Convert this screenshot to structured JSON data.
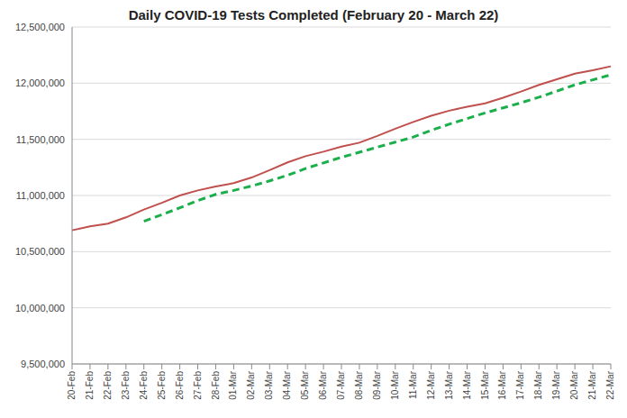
{
  "chart_data": {
    "type": "line",
    "title": "Daily COVID-19 Tests Completed (February 20 - March 22)",
    "categories": [
      "20-Feb",
      "21-Feb",
      "22-Feb",
      "23-Feb",
      "24-Feb",
      "25-Feb",
      "26-Feb",
      "27-Feb",
      "28-Feb",
      "01-Mar",
      "02-Mar",
      "03-Mar",
      "04-Mar",
      "05-Mar",
      "06-Mar",
      "07-Mar",
      "08-Mar",
      "09-Mar",
      "10-Mar",
      "11-Mar",
      "12-Mar",
      "13-Mar",
      "14-Mar",
      "15-Mar",
      "16-Mar",
      "17-Mar",
      "18-Mar",
      "19-Mar",
      "20-Mar",
      "21-Mar",
      "22-Mar"
    ],
    "series": [
      {
        "color": "#c0504d",
        "line_style": "solid",
        "values": [
          10690000,
          10725000,
          10750000,
          10805000,
          10875000,
          10935000,
          11000000,
          11045000,
          11080000,
          11110000,
          11160000,
          11225000,
          11295000,
          11350000,
          11390000,
          11435000,
          11470000,
          11530000,
          11595000,
          11655000,
          11710000,
          11755000,
          11790000,
          11820000,
          11870000,
          11925000,
          11985000,
          12035000,
          12085000,
          12115000,
          12150000
        ]
      },
      {
        "color": "#1aaf4b",
        "line_style": "dashed",
        "values": [
          null,
          null,
          null,
          null,
          10770000,
          10830000,
          10890000,
          10955000,
          11010000,
          11045000,
          11085000,
          11130000,
          11180000,
          11240000,
          11290000,
          11340000,
          11385000,
          11430000,
          11475000,
          11520000,
          11580000,
          11635000,
          11685000,
          11735000,
          11780000,
          11825000,
          11875000,
          11930000,
          11985000,
          12030000,
          12075000
        ]
      }
    ],
    "ylim": [
      9500000,
      12500000
    ],
    "yticks": [
      {
        "value": 9500000,
        "label": "9,500,000"
      },
      {
        "value": 10000000,
        "label": "10,000,000"
      },
      {
        "value": 10500000,
        "label": "10,500,000"
      },
      {
        "value": 11000000,
        "label": "11,000,000"
      },
      {
        "value": 11500000,
        "label": "11,500,000"
      },
      {
        "value": 12000000,
        "label": "12,000,000"
      },
      {
        "value": 12500000,
        "label": "12,500,000"
      }
    ],
    "grid": true
  }
}
